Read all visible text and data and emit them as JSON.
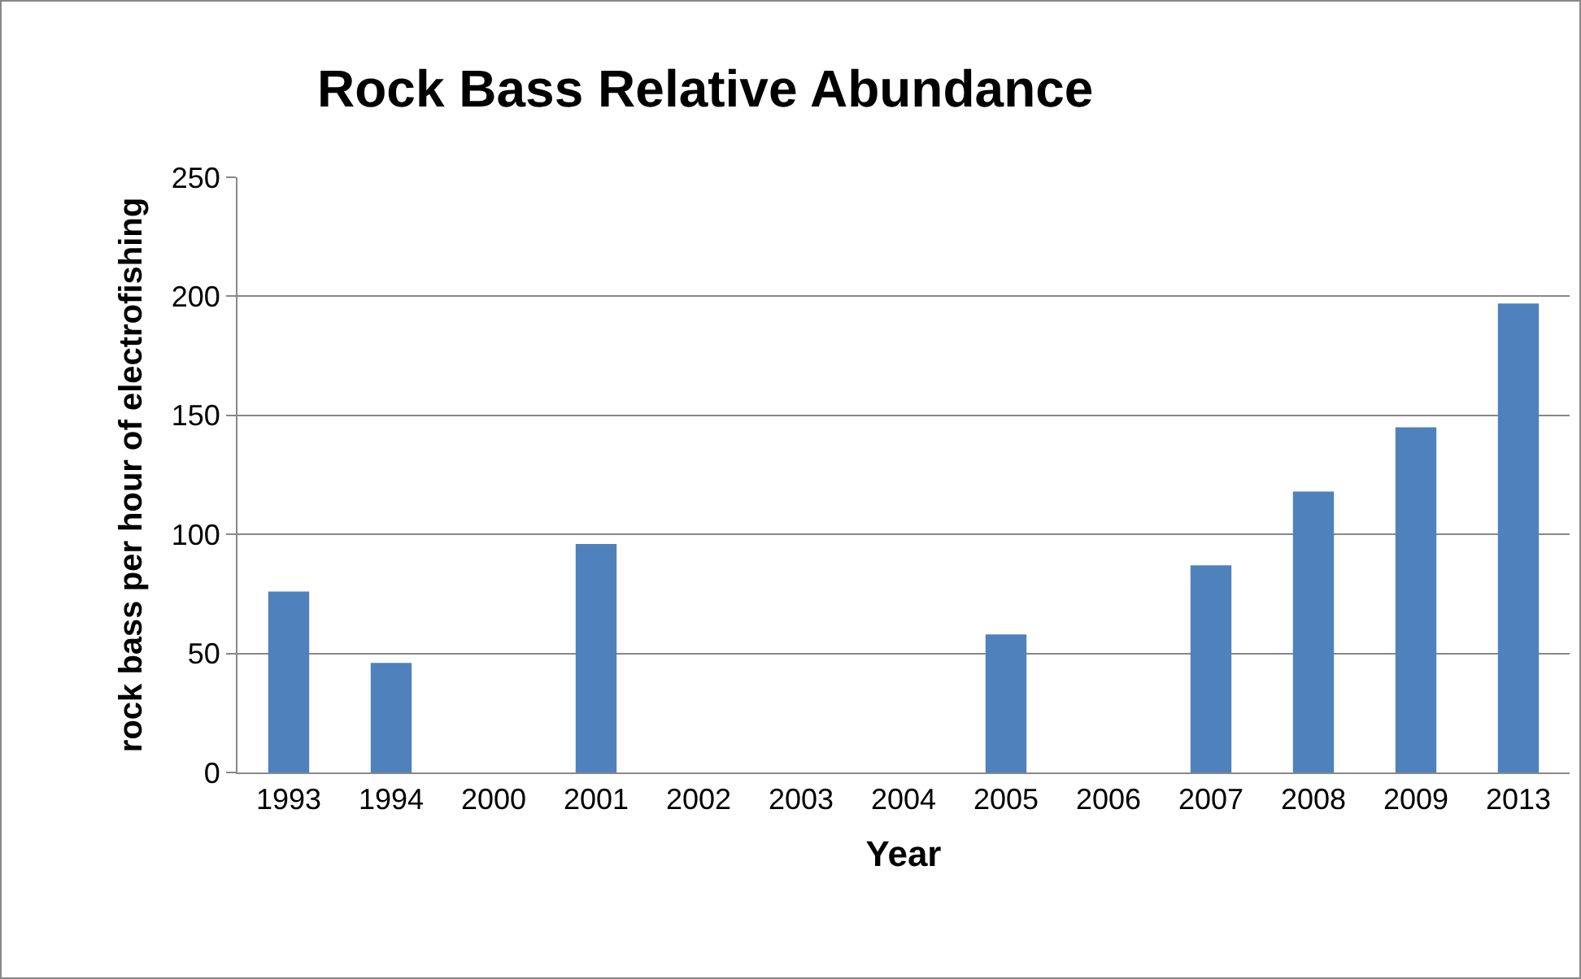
{
  "chart_data": {
    "type": "bar",
    "title": "Rock Bass Relative Abundance",
    "xlabel": "Year",
    "ylabel": "rock bass per hour of electrofishing",
    "categories": [
      "1993",
      "1994",
      "2000",
      "2001",
      "2002",
      "2003",
      "2004",
      "2005",
      "2006",
      "2007",
      "2008",
      "2009",
      "2013"
    ],
    "values": [
      76,
      46,
      null,
      96,
      null,
      null,
      null,
      58,
      null,
      87,
      118,
      145,
      197
    ],
    "color": "#4f81bd",
    "ylim": [
      0,
      250
    ],
    "yticks": [
      0,
      50,
      100,
      150,
      200,
      250
    ],
    "grid": "y",
    "legend": false
  }
}
